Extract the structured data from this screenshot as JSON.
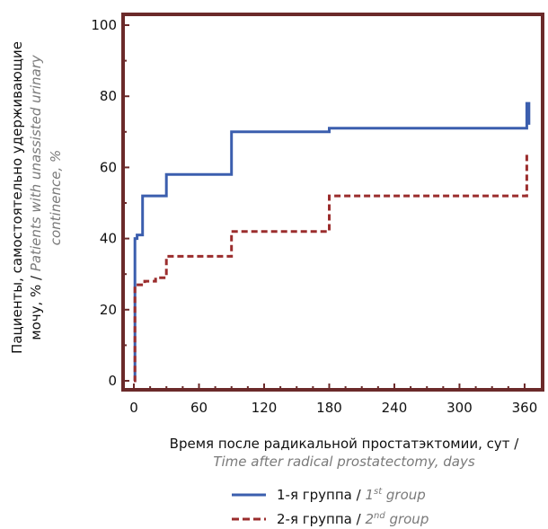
{
  "chart_data": {
    "type": "line",
    "title": "",
    "xlabel": {
      "ru": "Время после радикальной простатэктомии, сут /",
      "en": "Time after radical prostatectomy, days"
    },
    "ylabel": {
      "ru": "Пациенты, самостоятельно удерживающие",
      "ru2": "мочу, % / ",
      "en1": "Patients with unassisted urinary",
      "en2": "continence, %"
    },
    "xlim": [
      0,
      365
    ],
    "ylim": [
      0,
      100
    ],
    "xticks": [
      0,
      60,
      120,
      180,
      240,
      300,
      360
    ],
    "yticks": [
      0,
      20,
      40,
      60,
      80,
      100
    ],
    "legend_placement": "bottom-right",
    "series": [
      {
        "name_ru": "1-я группа / ",
        "name_en": "1",
        "name_sup": "st",
        "name_en_rest": " group",
        "color": "#3b5eae",
        "style": "solid",
        "x": [
          0,
          1,
          1,
          3,
          3,
          8,
          8,
          30,
          30,
          90,
          90,
          180,
          180,
          362,
          362,
          364,
          364
        ],
        "y": [
          0,
          0,
          40,
          40,
          41,
          41,
          52,
          52,
          58,
          58,
          70,
          70,
          71,
          71,
          78,
          78,
          72
        ]
      },
      {
        "name_ru": "2-я группа / ",
        "name_en": "2",
        "name_sup": "nd",
        "name_en_rest": " group",
        "color": "#9b2d2d",
        "style": "dashed",
        "x": [
          0,
          1,
          1,
          10,
          10,
          20,
          20,
          30,
          30,
          90,
          90,
          180,
          180,
          362,
          362
        ],
        "y": [
          0,
          0,
          27,
          27,
          28,
          28,
          29,
          29,
          35,
          35,
          42,
          42,
          52,
          52,
          64
        ]
      }
    ]
  }
}
